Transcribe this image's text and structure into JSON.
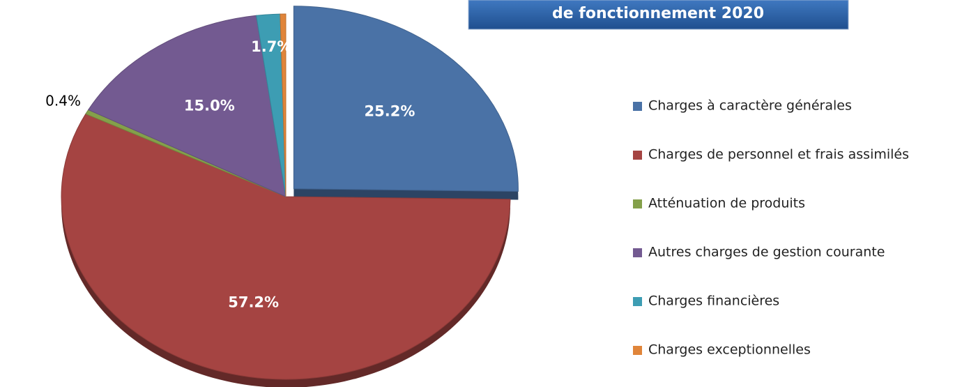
{
  "chart_data": {
    "type": "pie",
    "title": "de fonctionnement 2020",
    "categories": [
      "Charges à caractère générales",
      "Charges de personnel et frais assimilés",
      "Atténuation de produits",
      "Autres charges de gestion courante",
      "Charges financières",
      "Charges exceptionnelles"
    ],
    "values": [
      25.2,
      57.2,
      0.4,
      15.0,
      1.7,
      0.4
    ],
    "value_labels": [
      "25.2%",
      "57.2%",
      "0.4%",
      "15.0%",
      "1.7%",
      "0.4%"
    ],
    "colors": [
      "#4a72a6",
      "#a54442",
      "#84a04a",
      "#735a91",
      "#3d9db3",
      "#e0853a"
    ],
    "legend": "right"
  }
}
